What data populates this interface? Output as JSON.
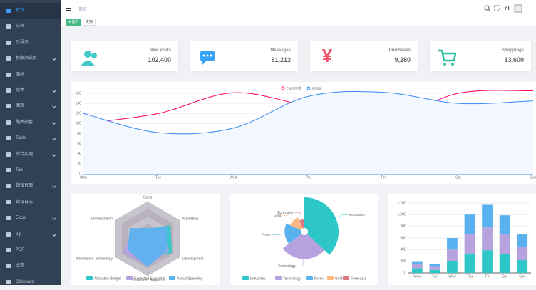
{
  "sidebar": {
    "items": [
      "首页",
      "文档",
      "引导页",
      "权限测试页",
      "图标",
      "组件",
      "图表",
      "路由嵌套",
      "Table",
      "综合实例",
      "Tab",
      "错误页面",
      "错误日志",
      "Excel",
      "Zip",
      "PDF",
      "主题",
      "Clipboard"
    ]
  },
  "header": {
    "breadcrumb": "首页"
  },
  "tags": [
    "首页",
    "文档"
  ],
  "cards": [
    {
      "label": "New Visits",
      "value": "102,400"
    },
    {
      "label": "Messages",
      "value": "81,212"
    },
    {
      "label": "Purchases",
      "value": "9,280"
    },
    {
      "label": "Shoppings",
      "value": "13,600"
    }
  ],
  "chart_data": [
    {
      "type": "line",
      "categories": [
        "Mon",
        "Tue",
        "Wed",
        "Thu",
        "Fri",
        "Sat",
        "Sun"
      ],
      "ylim": [
        0,
        160
      ],
      "yticks": [
        0,
        20,
        40,
        60,
        80,
        100,
        120,
        140,
        160
      ],
      "legend": "top",
      "series": [
        {
          "name": "expected",
          "color": "#FF005A",
          "values": [
            100,
            120,
            161,
            134,
            105,
            160,
            165
          ]
        },
        {
          "name": "actual",
          "color": "#3888fa",
          "values": [
            120,
            82,
            91,
            154,
            162,
            140,
            145
          ]
        }
      ]
    },
    {
      "type": "radar",
      "indicators": [
        "Sales",
        "Administration",
        "Information Technology",
        "Customer Support",
        "Development",
        "Marketing"
      ],
      "max": 20000,
      "series": [
        {
          "name": "Allocated Budget",
          "color": "#2ec7c9",
          "values": [
            5000,
            7000,
            12000,
            11000,
            15000,
            14000
          ]
        },
        {
          "name": "Expected Spending",
          "color": "#b6a2de",
          "values": [
            4000,
            9000,
            15000,
            15000,
            13000,
            11000
          ]
        },
        {
          "name": "Actual Spending",
          "color": "#5ab1ef",
          "values": [
            5500,
            11000,
            12000,
            15000,
            12000,
            12000
          ]
        }
      ]
    },
    {
      "type": "pie",
      "categories": [
        "Industries",
        "Technology",
        "Forex",
        "Gold",
        "Forecasts"
      ],
      "values": [
        320,
        240,
        149,
        100,
        59
      ],
      "colors": [
        "#2ec7c9",
        "#b6a2de",
        "#5ab1ef",
        "#ffb980",
        "#d87a80"
      ]
    },
    {
      "type": "bar",
      "stacked": true,
      "categories": [
        "Mon",
        "Tue",
        "Wed",
        "Thu",
        "Fri",
        "Sat",
        "Sun"
      ],
      "ylim": [
        0,
        1200
      ],
      "yticks": [
        0,
        200,
        400,
        600,
        800,
        {
          "value": 1000,
          "label": "1,000"
        },
        {
          "value": 1200,
          "label": "1,200"
        }
      ],
      "series": [
        {
          "color": "#2ec7c9",
          "values": [
            79,
            52,
            200,
            334,
            390,
            330,
            220
          ]
        },
        {
          "color": "#b6a2de",
          "values": [
            80,
            52,
            200,
            334,
            390,
            330,
            220
          ]
        },
        {
          "color": "#5ab1ef",
          "values": [
            30,
            52,
            200,
            334,
            390,
            330,
            220
          ]
        }
      ]
    }
  ]
}
